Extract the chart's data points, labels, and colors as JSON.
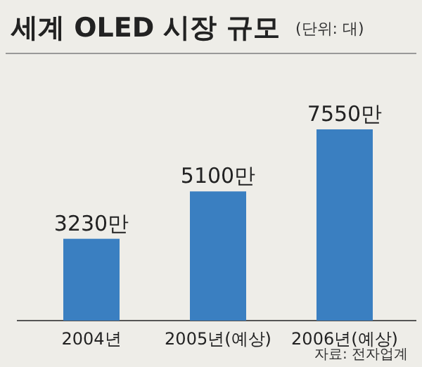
{
  "chart_data": {
    "type": "bar",
    "title": "세계 OLED 시장 규모",
    "subtitle": "(단위: 대)",
    "categories": [
      "2004년",
      "2005년(예상)",
      "2006년(예상)"
    ],
    "values": [
      3230,
      5100,
      7550
    ],
    "value_labels": [
      "3230만",
      "5100만",
      "7550만"
    ],
    "color": "#3a7fc1",
    "annotations": [
      "자료: 전자업계"
    ]
  }
}
